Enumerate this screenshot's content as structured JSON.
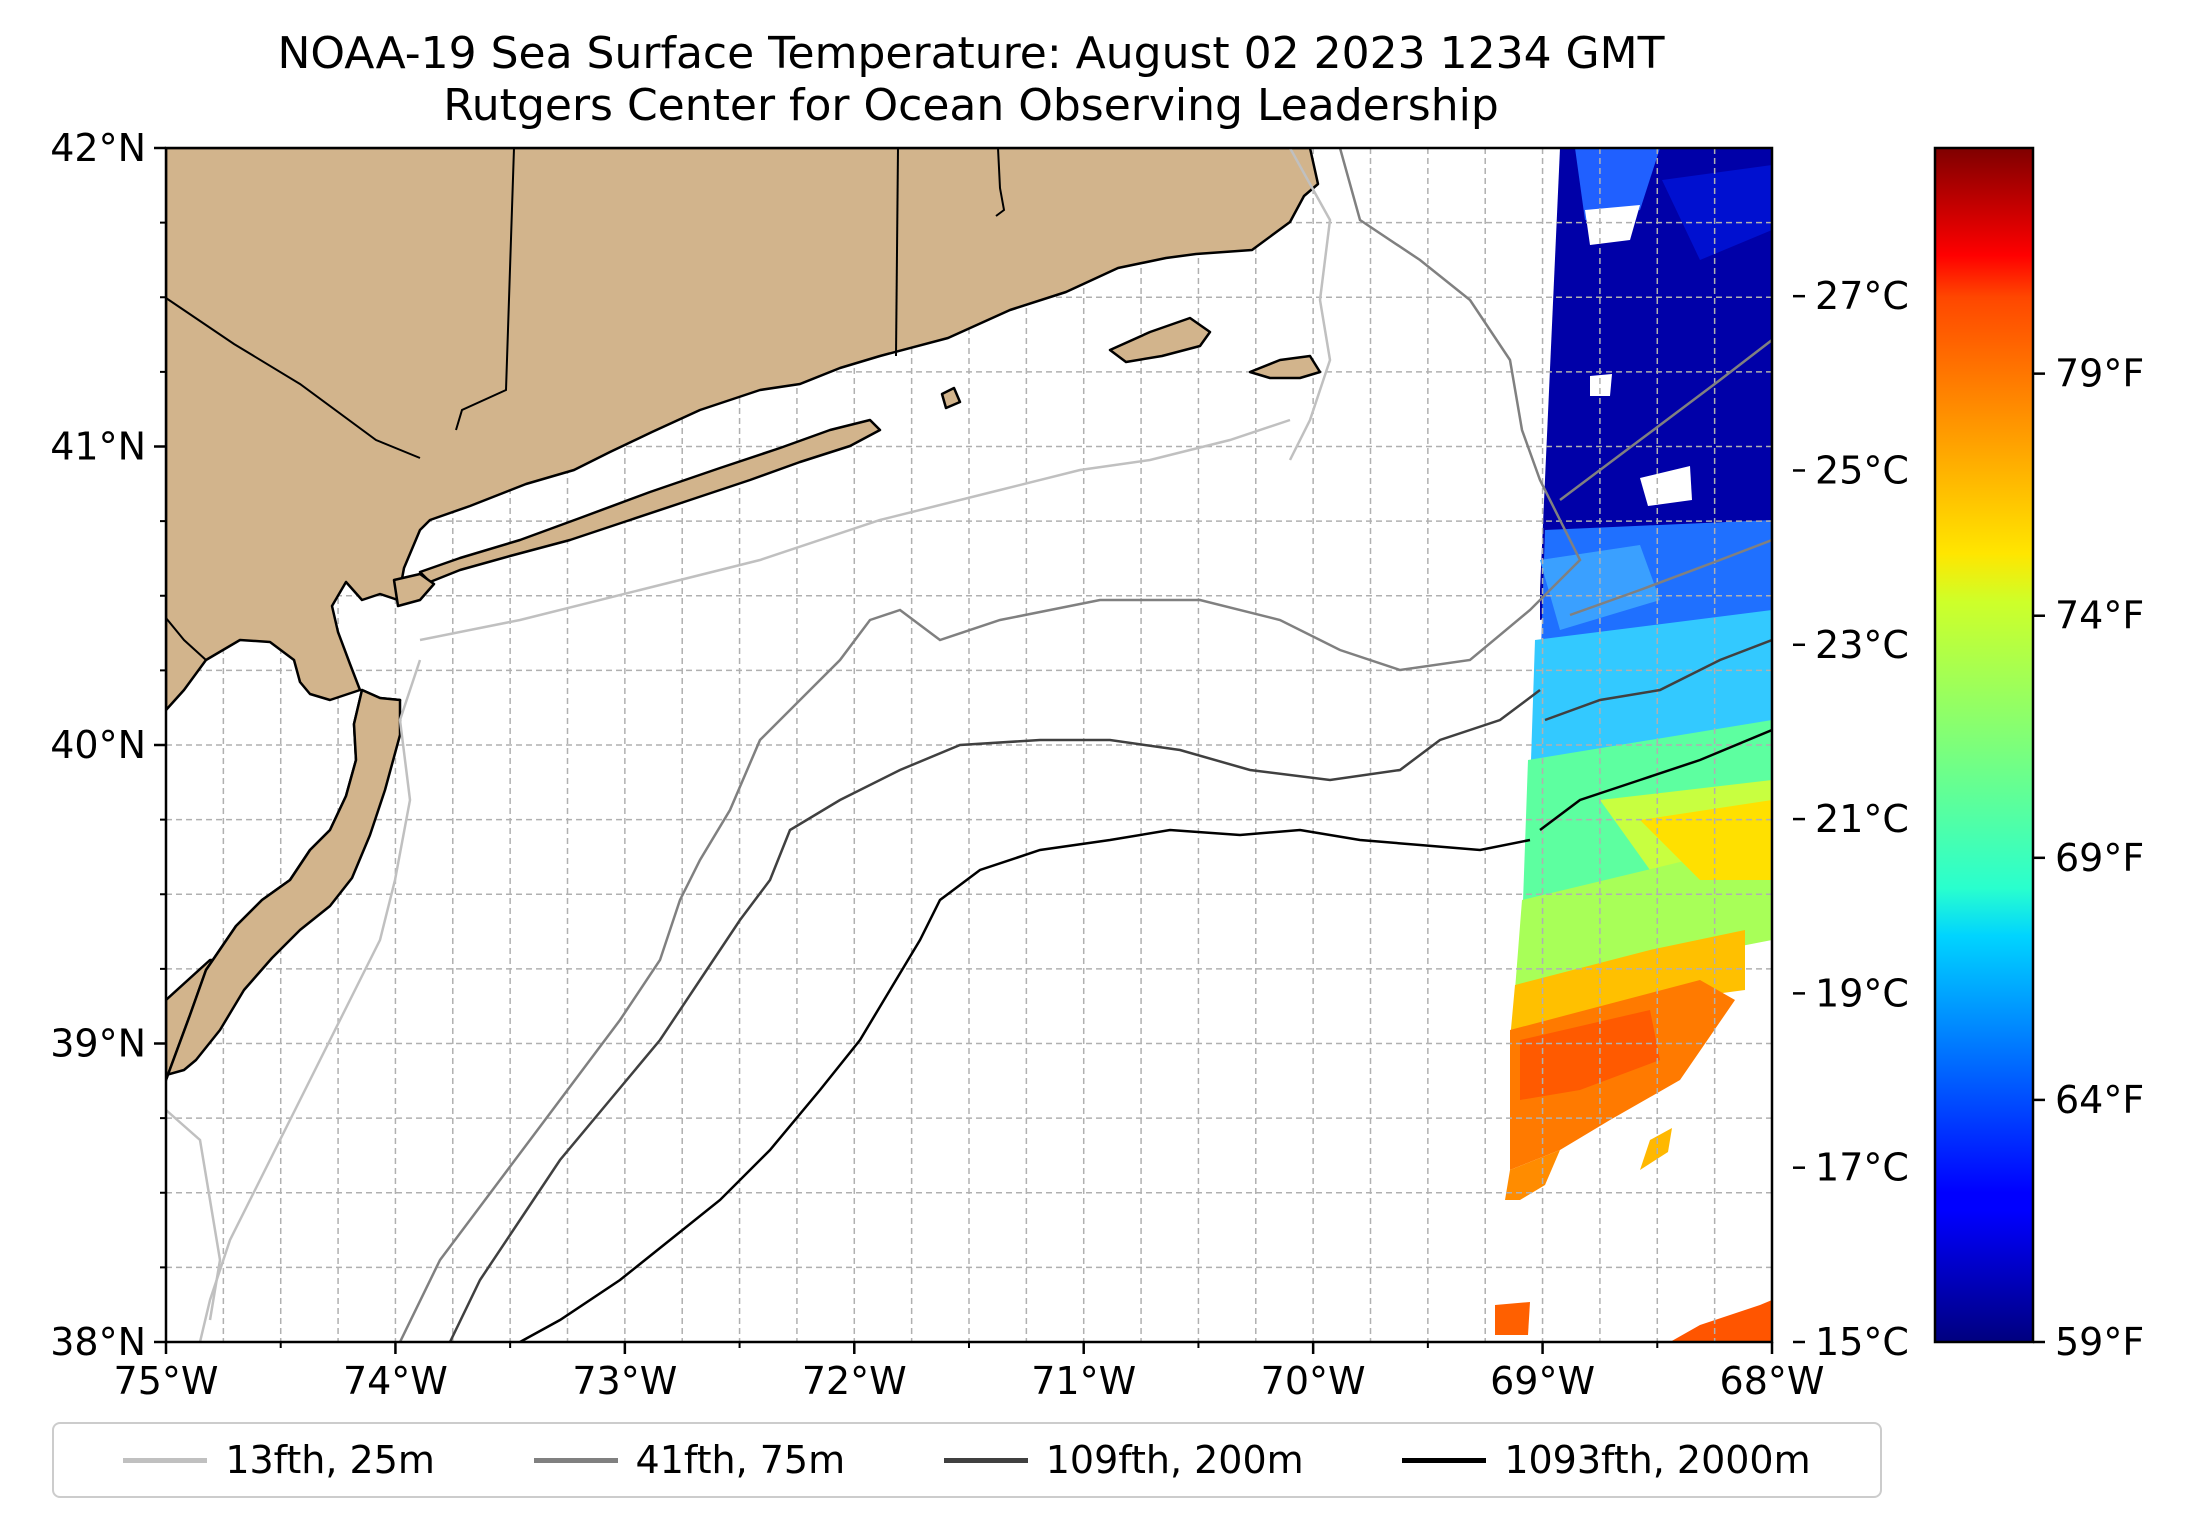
{
  "title": {
    "line1": "NOAA-19 Sea Surface Temperature: August 02 2023 1234 GMT",
    "line2": "Rutgers Center for Ocean Observing Leadership"
  },
  "map": {
    "extent": {
      "lon": [
        -75,
        -68
      ],
      "lat": [
        38,
        42
      ]
    },
    "grid": true,
    "lon_ticks": [
      {
        "value": -75,
        "label": "75°W"
      },
      {
        "value": -74,
        "label": "74°W"
      },
      {
        "value": -73,
        "label": "73°W"
      },
      {
        "value": -72,
        "label": "72°W"
      },
      {
        "value": -71,
        "label": "71°W"
      },
      {
        "value": -70,
        "label": "70°W"
      },
      {
        "value": -69,
        "label": "69°W"
      },
      {
        "value": -68,
        "label": "68°W"
      }
    ],
    "lat_ticks": [
      {
        "value": 38,
        "label": "38°N"
      },
      {
        "value": 39,
        "label": "39°N"
      },
      {
        "value": 40,
        "label": "40°N"
      },
      {
        "value": 41,
        "label": "41°N"
      },
      {
        "value": 42,
        "label": "42°N"
      }
    ],
    "colors": {
      "land": "#d2b48c",
      "coastline": "#000000",
      "grid": "#b0b0b0"
    }
  },
  "colorbar": {
    "colormap": "jet",
    "range_c": [
      15,
      28.7
    ],
    "celsius_ticks": [
      {
        "value": 15,
        "label": "15°C"
      },
      {
        "value": 17,
        "label": "17°C"
      },
      {
        "value": 19,
        "label": "19°C"
      },
      {
        "value": 21,
        "label": "21°C"
      },
      {
        "value": 23,
        "label": "23°C"
      },
      {
        "value": 25,
        "label": "25°C"
      },
      {
        "value": 27,
        "label": "27°C"
      }
    ],
    "fahrenheit_ticks": [
      {
        "value": 59,
        "label": "59°F"
      },
      {
        "value": 64,
        "label": "64°F"
      },
      {
        "value": 69,
        "label": "69°F"
      },
      {
        "value": 74,
        "label": "74°F"
      },
      {
        "value": 79,
        "label": "79°F"
      }
    ]
  },
  "legend": [
    {
      "label": "13fth, 25m",
      "color": "#c0c0c0"
    },
    {
      "label": "41fth, 75m",
      "color": "#808080"
    },
    {
      "label": "109fth, 200m",
      "color": "#404040"
    },
    {
      "label": "1093fth, 2000m",
      "color": "#000000"
    }
  ]
}
